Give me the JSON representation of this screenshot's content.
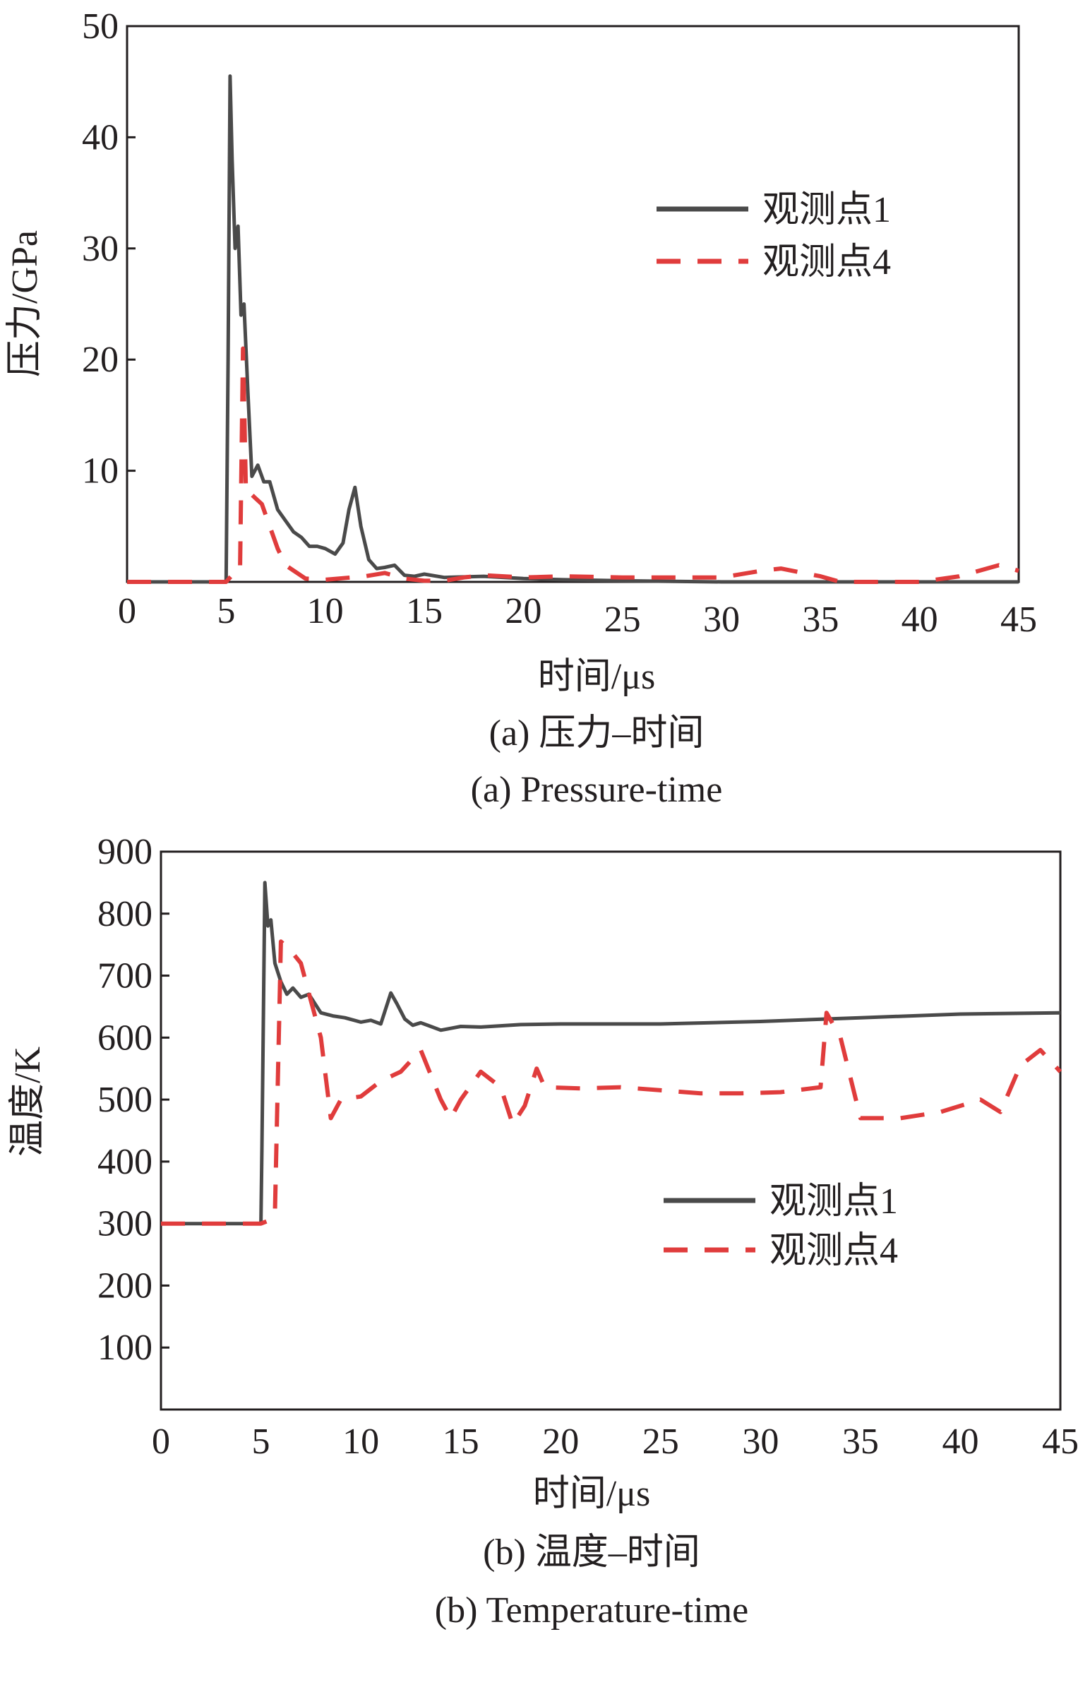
{
  "chart_data": [
    {
      "type": "line",
      "xlabel": "时间/μs",
      "ylabel": "压力/GPa",
      "xlim": [
        0,
        45
      ],
      "ylim": [
        0,
        50
      ],
      "xticks": [
        "0",
        "5",
        "10",
        "15",
        "20",
        "25",
        "30",
        "35",
        "40",
        "45"
      ],
      "yticks": [
        "10",
        "20",
        "30",
        "40",
        "50"
      ],
      "legend_position": "top-right",
      "caption_cn": "(a) 压力–时间",
      "caption_en": "(a) Pressure-time",
      "series": [
        {
          "name": "观测点1",
          "color": "#4a4a4a",
          "style": "solid",
          "x": [
            0,
            5.0,
            5.1,
            5.2,
            5.3,
            5.45,
            5.6,
            5.75,
            5.9,
            6.1,
            6.3,
            6.6,
            6.9,
            7.2,
            7.6,
            8.0,
            8.4,
            8.8,
            9.2,
            9.6,
            10.0,
            10.5,
            10.9,
            11.2,
            11.5,
            11.8,
            12.2,
            12.6,
            13.0,
            13.5,
            14.0,
            14.5,
            15.0,
            16.0,
            18.0,
            20.0,
            22.0,
            25.0,
            30.0,
            35.0,
            40.0,
            45.0
          ],
          "y": [
            0,
            0,
            20,
            45.5,
            38,
            30,
            32,
            24,
            25,
            17,
            9.5,
            10.5,
            9,
            9,
            6.5,
            5.5,
            4.5,
            4,
            3.2,
            3.2,
            3,
            2.5,
            3.5,
            6.5,
            8.5,
            5,
            2,
            1.2,
            1.3,
            1.5,
            0.6,
            0.5,
            0.7,
            0.4,
            0.5,
            0.3,
            0.2,
            0.1,
            0.0,
            0.0,
            0.0,
            0.0
          ]
        },
        {
          "name": "观测点4",
          "color": "#e03c3c",
          "style": "dashed",
          "x": [
            0,
            5.0,
            5.4,
            5.7,
            5.85,
            6.0,
            6.2,
            6.5,
            6.8,
            7.2,
            7.6,
            8.0,
            9.0,
            10.0,
            12.0,
            13.0,
            14.0,
            15.0,
            16.0,
            17.0,
            18.0,
            20.0,
            22.0,
            25.0,
            30.0,
            32.0,
            33.0,
            35.0,
            36.0,
            40.0,
            42.0,
            44.0,
            45.0
          ],
          "y": [
            0,
            0,
            0.8,
            1,
            21,
            8,
            8,
            7.5,
            7,
            5,
            3,
            1.5,
            0.3,
            0.2,
            0.5,
            0.8,
            0.3,
            0.1,
            0.1,
            0.4,
            0.6,
            0.4,
            0.5,
            0.4,
            0.4,
            1,
            1.2,
            0.5,
            0,
            0,
            0.5,
            1.5,
            1
          ]
        }
      ]
    },
    {
      "type": "line",
      "xlabel": "时间/μs",
      "ylabel": "温度/K",
      "xlim": [
        0,
        45
      ],
      "ylim": [
        0,
        900
      ],
      "xticks": [
        "0",
        "5",
        "10",
        "15",
        "20",
        "25",
        "30",
        "35",
        "40",
        "45"
      ],
      "yticks": [
        "100",
        "200",
        "300",
        "400",
        "500",
        "600",
        "700",
        "800",
        "900"
      ],
      "legend_position": "lower-right",
      "caption_cn": "(b) 温度–时间",
      "caption_en": "(b) Temperature-time",
      "series": [
        {
          "name": "观测点1",
          "color": "#4a4a4a",
          "style": "solid",
          "x": [
            0,
            5.0,
            5.05,
            5.2,
            5.35,
            5.5,
            5.7,
            6.0,
            6.3,
            6.6,
            7.0,
            7.4,
            8.0,
            8.6,
            9.2,
            10.0,
            10.5,
            11.0,
            11.5,
            11.8,
            12.2,
            12.6,
            13.0,
            13.5,
            14.0,
            14.5,
            15.0,
            16.0,
            18.0,
            20.0,
            25.0,
            30.0,
            35.0,
            40.0,
            45.0
          ],
          "y": [
            300,
            300,
            420,
            850,
            780,
            790,
            720,
            690,
            670,
            680,
            665,
            670,
            640,
            635,
            632,
            625,
            628,
            622,
            672,
            655,
            630,
            620,
            624,
            618,
            612,
            615,
            618,
            617,
            621,
            622,
            622,
            626,
            632,
            638,
            640
          ]
        },
        {
          "name": "观测点4",
          "color": "#e03c3c",
          "style": "dashed",
          "x": [
            0,
            5.0,
            5.4,
            5.7,
            6.0,
            6.5,
            7.0,
            7.5,
            8.0,
            8.5,
            9.0,
            10.0,
            11.0,
            12.0,
            13.0,
            14.0,
            14.5,
            15.0,
            16.0,
            17.0,
            17.6,
            18.2,
            18.8,
            19.2,
            21.0,
            23.0,
            25.0,
            27.0,
            29.0,
            31.0,
            33.0,
            33.3,
            34.0,
            35.0,
            37.0,
            39.0,
            41.0,
            42.0,
            43.0,
            44.0,
            45.0
          ],
          "y": [
            300,
            300,
            305,
            315,
            755,
            740,
            720,
            660,
            600,
            470,
            500,
            505,
            530,
            545,
            580,
            500,
            470,
            500,
            545,
            520,
            460,
            490,
            550,
            520,
            518,
            520,
            515,
            510,
            510,
            512,
            520,
            640,
            600,
            470,
            470,
            480,
            500,
            480,
            555,
            580,
            545
          ]
        }
      ]
    }
  ]
}
